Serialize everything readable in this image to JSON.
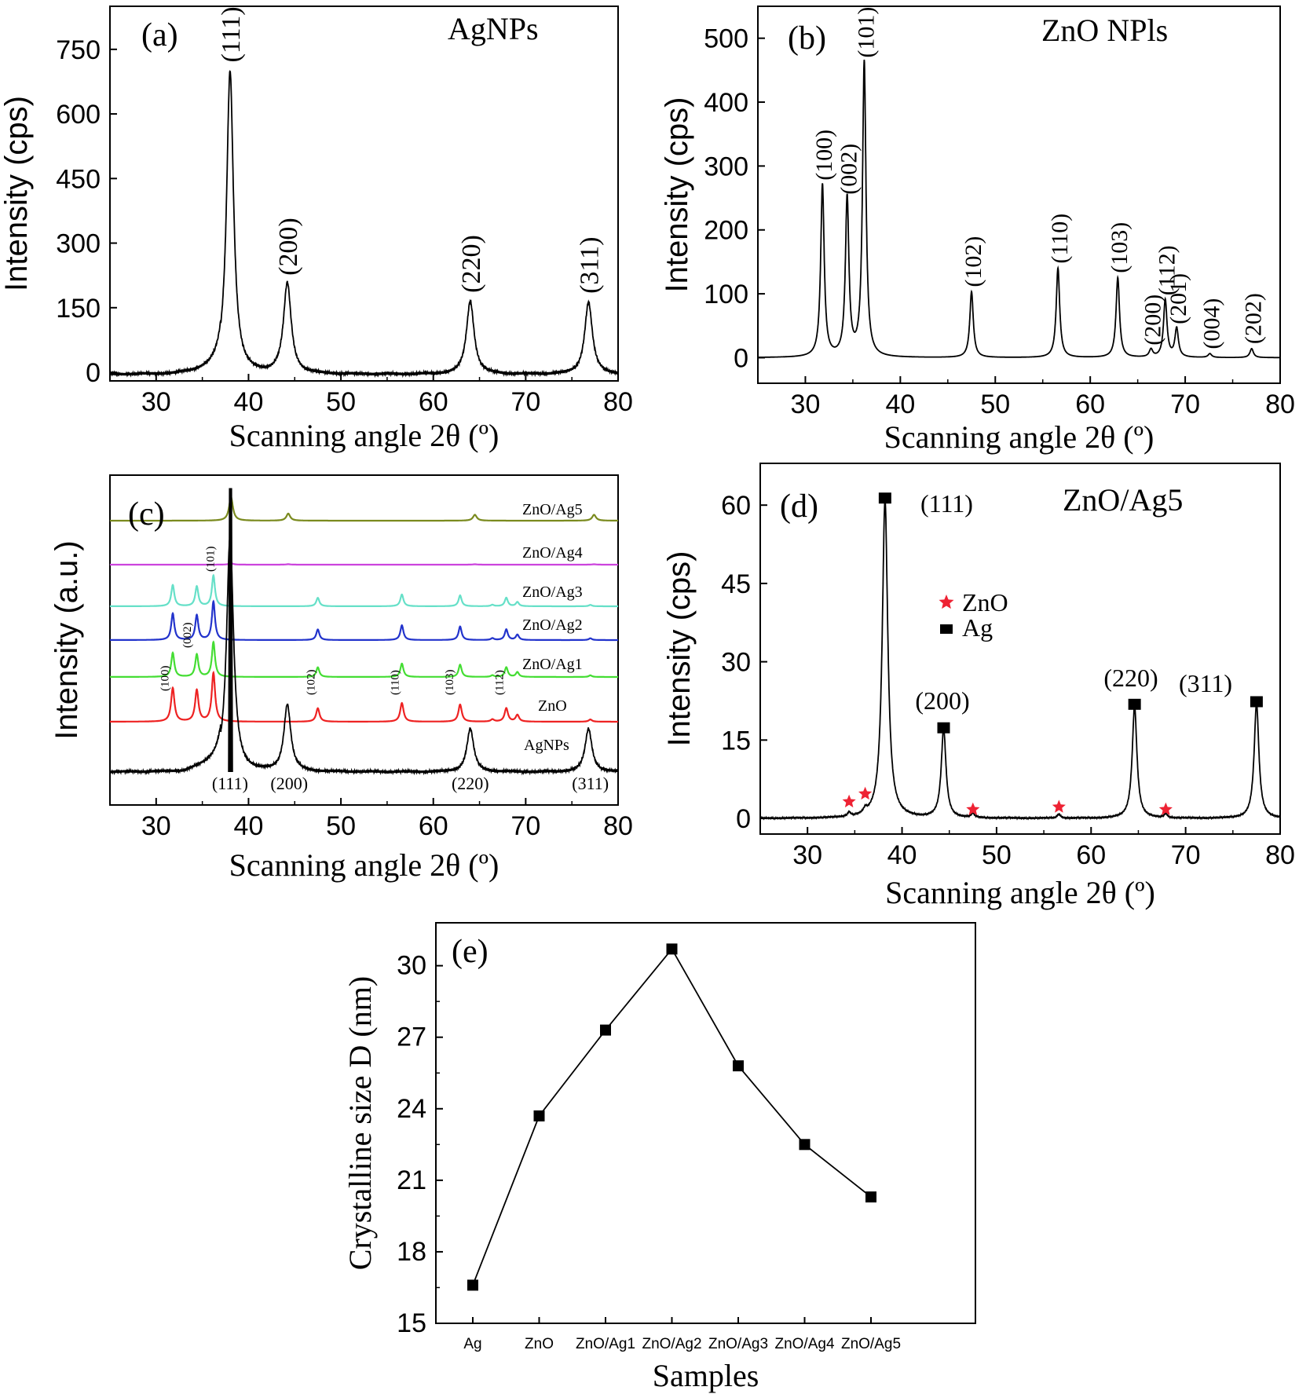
{
  "chart_data": [
    {
      "type": "line",
      "panel_label": "(a)",
      "title": "AgNPs",
      "xlabel": "Scanning angle 2θ (º)",
      "ylabel": "Intensity (cps)",
      "xlim": [
        25,
        80
      ],
      "ylim": [
        -20,
        850
      ],
      "xticks": [
        "30",
        "40",
        "50",
        "60",
        "70",
        "80"
      ],
      "yticks": [
        "0",
        "150",
        "300",
        "450",
        "600",
        "750"
      ],
      "peaks": [
        {
          "x": 38.0,
          "y": 705,
          "label": "(111)"
        },
        {
          "x": 44.2,
          "y": 210,
          "label": "(200)"
        },
        {
          "x": 64.0,
          "y": 170,
          "label": "(220)"
        },
        {
          "x": 76.8,
          "y": 168,
          "label": "(311)"
        }
      ]
    },
    {
      "type": "line",
      "panel_label": "(b)",
      "title": "ZnO NPls",
      "xlabel": "Scanning angle 2θ (º)",
      "ylabel": "Intensity (cps)",
      "xlim": [
        25,
        80
      ],
      "ylim": [
        -40,
        550
      ],
      "xticks": [
        "30",
        "40",
        "50",
        "60",
        "70",
        "80"
      ],
      "yticks": [
        "0",
        "100",
        "200",
        "300",
        "400",
        "500"
      ],
      "peaks": [
        {
          "x": 31.8,
          "y": 270,
          "label": "(100)"
        },
        {
          "x": 34.4,
          "y": 248,
          "label": "(002)"
        },
        {
          "x": 36.2,
          "y": 462,
          "label": "(101)"
        },
        {
          "x": 47.5,
          "y": 103,
          "label": "(102)"
        },
        {
          "x": 56.6,
          "y": 140,
          "label": "(110)"
        },
        {
          "x": 62.9,
          "y": 125,
          "label": "(103)"
        },
        {
          "x": 66.4,
          "y": 12,
          "label": "(200)"
        },
        {
          "x": 67.9,
          "y": 90,
          "label": "(112)"
        },
        {
          "x": 69.1,
          "y": 45,
          "label": "(201)"
        },
        {
          "x": 72.6,
          "y": 6,
          "label": "(004)"
        },
        {
          "x": 77.0,
          "y": 14,
          "label": "(202)"
        }
      ]
    },
    {
      "type": "line",
      "panel_label": "(c)",
      "xlabel": "Scanning angle 2θ (º)",
      "ylabel": "Intensity (a.u.)",
      "xlim": [
        25,
        80
      ],
      "xticks": [
        "30",
        "40",
        "50",
        "60",
        "70",
        "80"
      ],
      "series": [
        {
          "name": "ZnO/Ag5",
          "color": "#7a8a1e"
        },
        {
          "name": "ZnO/Ag4",
          "color": "#cc44dd"
        },
        {
          "name": "ZnO/Ag3",
          "color": "#66e0c8"
        },
        {
          "name": "ZnO/Ag2",
          "color": "#2233cc"
        },
        {
          "name": "ZnO/Ag1",
          "color": "#44dd33"
        },
        {
          "name": "ZnO",
          "color": "#ee2222"
        },
        {
          "name": "AgNPs",
          "color": "#000000"
        }
      ],
      "zno_peak_labels": [
        "(100)",
        "(002)",
        "(101)",
        "(102)",
        "(110)",
        "(103)",
        "(112)"
      ],
      "ag_peak_labels": [
        "(111)",
        "(200)",
        "(220)",
        "(311)"
      ]
    },
    {
      "type": "line",
      "panel_label": "(d)",
      "title": "ZnO/Ag5",
      "xlabel": "Scanning angle 2θ (º)",
      "ylabel": "Intensity (cps)",
      "xlim": [
        25,
        80
      ],
      "ylim": [
        -3,
        68
      ],
      "xticks": [
        "30",
        "40",
        "50",
        "60",
        "70",
        "80"
      ],
      "yticks": [
        "0",
        "15",
        "30",
        "45",
        "60"
      ],
      "legend": [
        {
          "name": "ZnO",
          "marker": "star",
          "color": "#ee2233"
        },
        {
          "name": "Ag",
          "marker": "square",
          "color": "#000000"
        }
      ],
      "ag_peaks": [
        {
          "x": 38.2,
          "y": 61.5,
          "label": "(111)"
        },
        {
          "x": 44.4,
          "y": 17.5,
          "label": "(200)"
        },
        {
          "x": 64.6,
          "y": 22,
          "label": "(220)"
        },
        {
          "x": 77.5,
          "y": 22.5,
          "label": "(311)"
        }
      ],
      "zno_peaks": [
        {
          "x": 34.4,
          "y": 3.5
        },
        {
          "x": 36.1,
          "y": 5
        },
        {
          "x": 47.5,
          "y": 2
        },
        {
          "x": 56.6,
          "y": 2.5
        },
        {
          "x": 67.9,
          "y": 2
        }
      ]
    },
    {
      "type": "line",
      "panel_label": "(e)",
      "xlabel": "Samples",
      "ylabel": "Crystalline size D (nm)",
      "categories": [
        "Ag",
        "ZnO",
        "ZnO/Ag1",
        "ZnO/Ag2",
        "ZnO/Ag3",
        "ZnO/Ag4",
        "ZnO/Ag5"
      ],
      "values": [
        16.6,
        23.7,
        27.3,
        30.7,
        25.8,
        22.5,
        20.3
      ],
      "ylim": [
        15,
        31.8
      ],
      "yticks": [
        "15",
        "18",
        "21",
        "24",
        "27",
        "30"
      ]
    }
  ]
}
